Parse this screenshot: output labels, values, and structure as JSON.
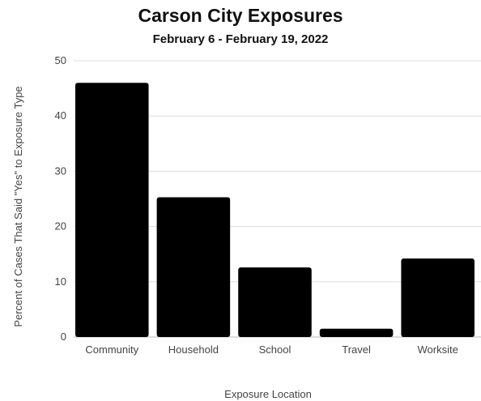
{
  "chart_data": {
    "type": "bar",
    "title": "Carson City Exposures",
    "subtitle": "February 6 - February 19, 2022",
    "xlabel": "Exposure Location",
    "ylabel": "Percent of Cases That Said \"Yes\" to Exposure Type",
    "categories": [
      "Community",
      "Household",
      "School",
      "Travel",
      "Worksite"
    ],
    "values": [
      46,
      25.3,
      12.6,
      1.5,
      14.2
    ],
    "ylim": [
      0,
      50
    ],
    "yticks": [
      0,
      10,
      20,
      30,
      40,
      50
    ],
    "grid": true,
    "bar_color": "#000000",
    "grid_color": "#dddddd"
  }
}
